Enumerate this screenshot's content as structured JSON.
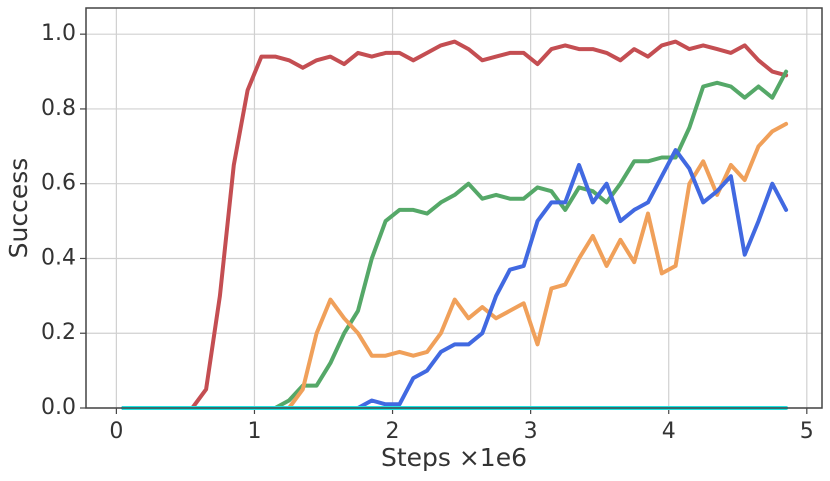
{
  "chart_data": {
    "type": "line",
    "x_label": "Steps ×1e6",
    "y_label": "Success",
    "xlim": [
      -0.22,
      5.11
    ],
    "ylim": [
      0,
      1.07
    ],
    "xticks": [
      0,
      1,
      2,
      3,
      4,
      5
    ],
    "yticks": [
      {
        "value": 0,
        "label": "0.0"
      },
      {
        "value": 0.2,
        "label": "0.2"
      },
      {
        "value": 0.4,
        "label": "0.4"
      },
      {
        "value": 0.6,
        "label": "0.6"
      },
      {
        "value": 0.8,
        "label": "0.8"
      },
      {
        "value": 1,
        "label": "1.0"
      }
    ],
    "grid": true,
    "x": [
      0.05,
      0.15,
      0.25,
      0.35,
      0.45,
      0.55,
      0.65,
      0.75,
      0.85,
      0.95,
      1.05,
      1.15,
      1.25,
      1.35,
      1.45,
      1.55,
      1.65,
      1.75,
      1.85,
      1.95,
      2.05,
      2.15,
      2.25,
      2.35,
      2.45,
      2.55,
      2.65,
      2.75,
      2.85,
      2.95,
      3.05,
      3.15,
      3.25,
      3.35,
      3.45,
      3.55,
      3.65,
      3.75,
      3.85,
      3.95,
      4.05,
      4.15,
      4.25,
      4.35,
      4.45,
      4.55,
      4.65,
      4.75,
      4.85
    ],
    "series": [
      {
        "color": "#c44e52",
        "values": [
          0,
          0,
          0,
          0,
          0,
          0,
          0.05,
          0.3,
          0.65,
          0.85,
          0.94,
          0.94,
          0.93,
          0.91,
          0.93,
          0.94,
          0.92,
          0.95,
          0.94,
          0.95,
          0.95,
          0.93,
          0.95,
          0.97,
          0.98,
          0.96,
          0.93,
          0.94,
          0.95,
          0.95,
          0.92,
          0.96,
          0.97,
          0.96,
          0.96,
          0.95,
          0.93,
          0.96,
          0.94,
          0.97,
          0.98,
          0.96,
          0.97,
          0.96,
          0.95,
          0.97,
          0.93,
          0.9,
          0.89
        ]
      },
      {
        "color": "#55a868",
        "values": [
          0,
          0,
          0,
          0,
          0,
          0,
          0,
          0,
          0,
          0,
          0,
          0,
          0.02,
          0.06,
          0.06,
          0.12,
          0.2,
          0.26,
          0.4,
          0.5,
          0.53,
          0.53,
          0.52,
          0.55,
          0.57,
          0.6,
          0.56,
          0.57,
          0.56,
          0.56,
          0.59,
          0.58,
          0.53,
          0.59,
          0.58,
          0.55,
          0.6,
          0.66,
          0.66,
          0.67,
          0.67,
          0.75,
          0.86,
          0.87,
          0.86,
          0.83,
          0.86,
          0.83,
          0.9
        ]
      },
      {
        "color": "#f0a05a",
        "values": [
          0,
          0,
          0,
          0,
          0,
          0,
          0,
          0,
          0,
          0,
          0,
          0,
          0,
          0.05,
          0.2,
          0.29,
          0.24,
          0.2,
          0.14,
          0.14,
          0.15,
          0.14,
          0.15,
          0.2,
          0.29,
          0.24,
          0.27,
          0.24,
          0.26,
          0.28,
          0.17,
          0.32,
          0.33,
          0.4,
          0.46,
          0.38,
          0.45,
          0.39,
          0.52,
          0.36,
          0.38,
          0.6,
          0.66,
          0.57,
          0.65,
          0.61,
          0.7,
          0.74,
          0.76
        ]
      },
      {
        "color": "#4169e1",
        "values": [
          0,
          0,
          0,
          0,
          0,
          0,
          0,
          0,
          0,
          0,
          0,
          0,
          0,
          0,
          0,
          0,
          0,
          0,
          0.02,
          0.01,
          0.01,
          0.08,
          0.1,
          0.15,
          0.17,
          0.17,
          0.2,
          0.3,
          0.37,
          0.38,
          0.5,
          0.55,
          0.55,
          0.65,
          0.55,
          0.6,
          0.5,
          0.53,
          0.55,
          0.62,
          0.69,
          0.64,
          0.55,
          0.58,
          0.62,
          0.41,
          0.5,
          0.6,
          0.53
        ]
      },
      {
        "color": "#1ee3e3",
        "values": [
          0,
          0,
          0,
          0,
          0,
          0,
          0,
          0,
          0,
          0,
          0,
          0,
          0,
          0,
          0,
          0,
          0,
          0,
          0,
          0,
          0,
          0,
          0,
          0,
          0,
          0,
          0,
          0,
          0,
          0,
          0,
          0,
          0,
          0,
          0,
          0,
          0,
          0,
          0,
          0,
          0,
          0,
          0,
          0,
          0,
          0,
          0,
          0,
          0
        ]
      }
    ]
  }
}
